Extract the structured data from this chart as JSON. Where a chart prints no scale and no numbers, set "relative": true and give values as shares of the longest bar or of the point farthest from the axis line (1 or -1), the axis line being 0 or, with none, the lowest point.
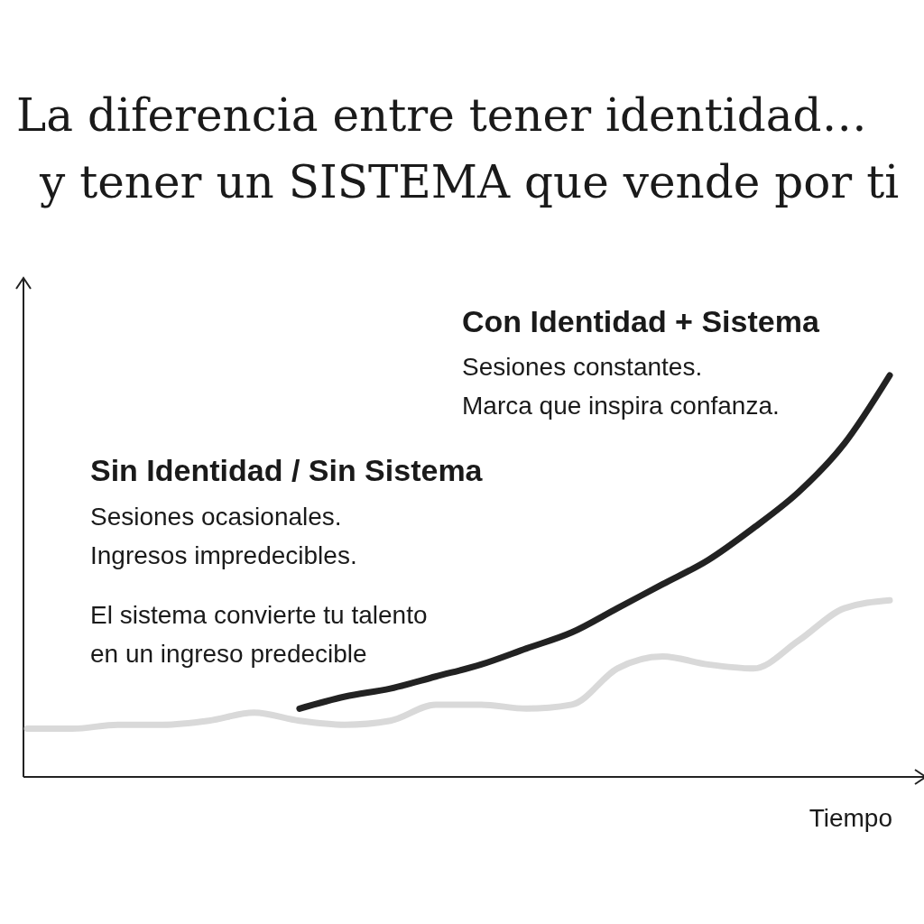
{
  "chart_data": {
    "type": "line",
    "relative": true,
    "title": "La diferencia entre tener identidad…",
    "subtitle": "y tener un SISTEMA que vende por ti",
    "xlabel": "Tiempo",
    "categories": [
      null,
      null,
      null,
      null,
      null,
      null,
      null,
      null,
      null,
      null,
      null,
      null,
      null,
      null,
      null,
      null,
      null,
      null,
      null,
      null
    ],
    "series": [
      {
        "color": "#d9d9d9",
        "values": [
          0.12,
          0.12,
          0.13,
          0.13,
          0.14,
          0.16,
          0.14,
          0.13,
          0.14,
          0.18,
          0.18,
          0.17,
          0.18,
          0.27,
          0.3,
          0.28,
          0.27,
          0.34,
          0.42,
          0.44
        ]
      },
      {
        "color": "#222222",
        "values": [
          null,
          null,
          null,
          null,
          null,
          null,
          0.17,
          0.2,
          0.22,
          0.25,
          0.28,
          0.32,
          0.36,
          0.42,
          0.48,
          0.54,
          0.62,
          0.71,
          0.83,
          1
        ]
      }
    ],
    "annotations": [
      "Con Identidad + Sistema",
      "Sesiones constantes.",
      "Marca que inspira confanza.",
      "Sin Identidad / Sin Sistema",
      "Sesiones ocasionales.",
      "Ingresos impredecibles.",
      "El sistema convierte tu talento",
      "en un ingreso predecible"
    ],
    "marker": "none",
    "line_style": "solid"
  }
}
